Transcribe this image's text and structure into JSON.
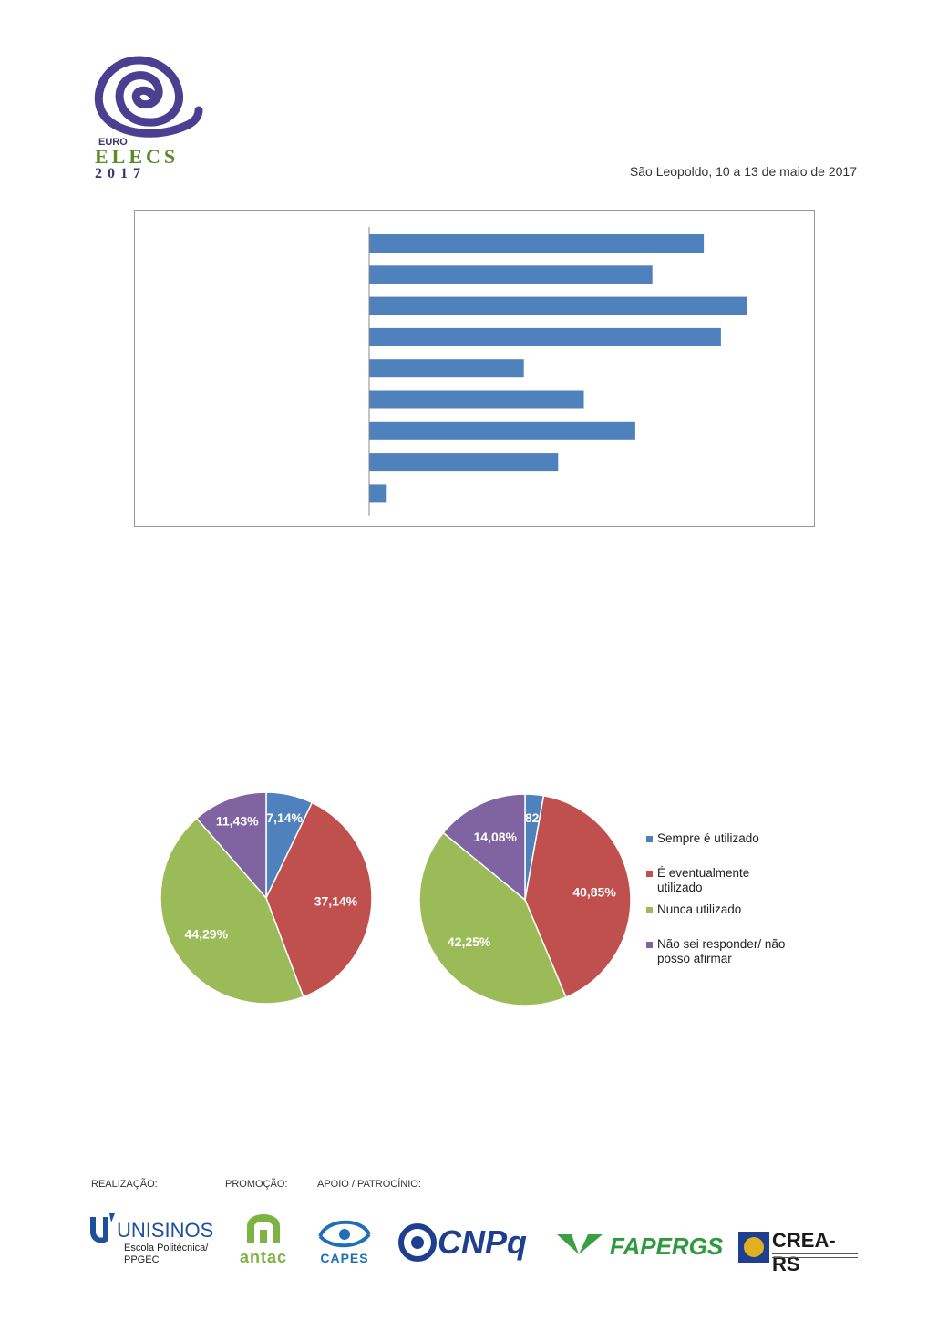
{
  "header": {
    "logo_text": {
      "line1": "EURO",
      "line2": "ELECS",
      "line3": "2017"
    },
    "date_line": "São Leopoldo, 10 a 13 de maio de 2017"
  },
  "chart_data": [
    {
      "type": "bar",
      "orientation": "horizontal",
      "categories": [
        "",
        "",
        "",
        "",
        "",
        "",
        "",
        "",
        ""
      ],
      "values": [
        19.5,
        16.5,
        22,
        20.5,
        9,
        12.5,
        15.5,
        11,
        1
      ],
      "xlim": [
        0,
        25
      ],
      "grid": false,
      "colors": [
        "#4f81bd"
      ]
    },
    {
      "type": "pie",
      "labels": [
        "Sempre é utilizado",
        "É eventualmente utilizado",
        "Nunca utilizado",
        "Não sei responder/ não posso afirmar"
      ],
      "values": [
        7.14,
        37.14,
        44.29,
        11.43
      ],
      "value_labels": [
        "7,14%",
        "37,14%",
        "44,29%",
        "11,43%"
      ],
      "colors": [
        "#4f81bd",
        "#c0504d",
        "#9bbb59",
        "#8064a2"
      ]
    },
    {
      "type": "pie",
      "labels": [
        "Sempre é utilizado",
        "É eventualmente utilizado",
        "Nunca utilizado",
        "Não sei responder/ não posso afirmar"
      ],
      "values": [
        2.82,
        40.85,
        42.25,
        14.08
      ],
      "value_labels": [
        "2,82%",
        "40,85%",
        "42,25%",
        "14,08%"
      ],
      "colors": [
        "#4f81bd",
        "#c0504d",
        "#9bbb59",
        "#8064a2"
      ],
      "legend": "right"
    }
  ],
  "legend": {
    "items": [
      {
        "label": "Sempre é utilizado",
        "color": "#4f81bd"
      },
      {
        "label": "É eventualmente utilizado",
        "color": "#c0504d"
      },
      {
        "label": "Nunca utilizado",
        "color": "#9bbb59"
      },
      {
        "label": "Não sei responder/ não posso afirmar",
        "color": "#8064a2"
      }
    ]
  },
  "footer": {
    "realizacao_label": "REALIZAÇÃO:",
    "promocao_label": "PROMOÇÃO:",
    "apoio_label": "APOIO / PATROCÍNIO:",
    "unisinos": {
      "name": "UNISINOS",
      "line1": "Escola Politécnica/",
      "line2": "PPGEC"
    },
    "antac": "antac",
    "capes": "CAPES",
    "cnpq": "CNPq",
    "fapergs": "FAPERGS",
    "crears": "CREA-RS"
  }
}
